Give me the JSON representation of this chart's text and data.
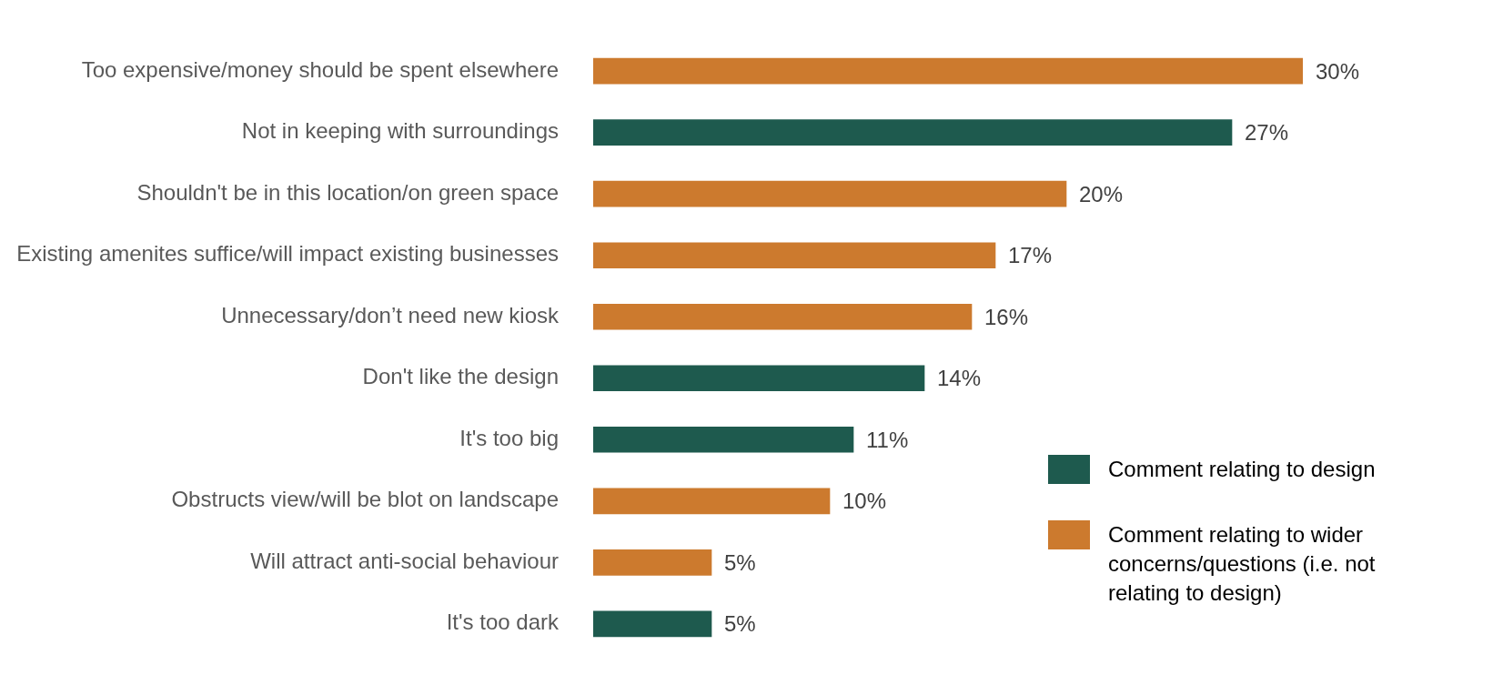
{
  "chart_data": {
    "type": "bar",
    "orientation": "horizontal",
    "stacked": true,
    "legend": "right",
    "categories": [
      "Too expensive/money should be spent elsewhere",
      "Not in keeping with surroundings",
      "Shouldn't be in this location/on green space",
      "Existing amenites suffice/will impact existing businesses",
      "Unnecessary/don’t need new kiosk",
      "Don't like the design",
      "It's too big",
      "Obstructs view/will be blot on landscape",
      "Will attract anti-social behaviour",
      "It's too dark"
    ],
    "series": [
      {
        "name": "Comment relating to design",
        "color": "#1e5a4e",
        "values": [
          null,
          27,
          null,
          null,
          null,
          14,
          11,
          null,
          null,
          5
        ],
        "value_labels": [
          null,
          "27%",
          null,
          null,
          null,
          "14%",
          "11%",
          null,
          null,
          "5%"
        ]
      },
      {
        "name": "Comment relating to wider concerns/questions (i.e. not relating to design)",
        "color": "#cc7a2e",
        "values": [
          30,
          null,
          20,
          17,
          16,
          null,
          null,
          10,
          5,
          null
        ],
        "value_labels": [
          "30%",
          null,
          "20%",
          "17%",
          "16%",
          null,
          null,
          "10%",
          "5%",
          null
        ]
      }
    ]
  }
}
